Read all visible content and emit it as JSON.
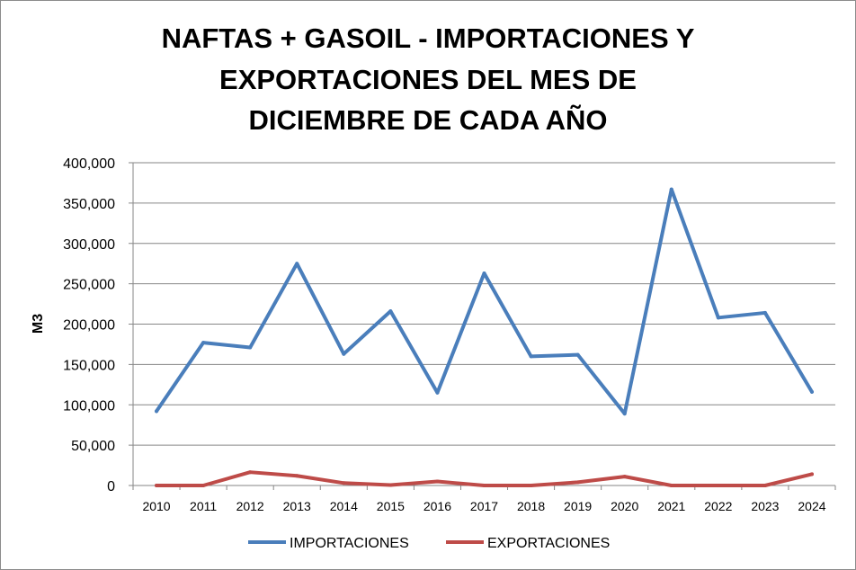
{
  "chart_data": {
    "type": "line",
    "title": "NAFTAS + GASOIL - IMPORTACIONES Y EXPORTACIONES DEL MES DE DICIEMBRE DE CADA AÑO",
    "title_lines": [
      "NAFTAS + GASOIL - IMPORTACIONES Y",
      "EXPORTACIONES DEL MES DE",
      "DICIEMBRE DE CADA AÑO"
    ],
    "xlabel": "",
    "ylabel": "M3",
    "ylim": [
      0,
      400000
    ],
    "y_ticks": [
      0,
      50000,
      100000,
      150000,
      200000,
      250000,
      300000,
      350000,
      400000
    ],
    "y_tick_labels": [
      "0",
      "50,000",
      "100,000",
      "150,000",
      "200,000",
      "250,000",
      "300,000",
      "350,000",
      "400,000"
    ],
    "categories": [
      "2010",
      "2011",
      "2012",
      "2013",
      "2014",
      "2015",
      "2016",
      "2017",
      "2018",
      "2019",
      "2020",
      "2021",
      "2022",
      "2023",
      "2024"
    ],
    "grid": true,
    "legend_position": "bottom",
    "series": [
      {
        "name": "IMPORTACIONES",
        "color": "#4a7ebb",
        "values": [
          92000,
          177000,
          171000,
          275000,
          163000,
          216000,
          115000,
          263000,
          160000,
          162000,
          89000,
          367000,
          208000,
          214000,
          116000
        ]
      },
      {
        "name": "EXPORTACIONES",
        "color": "#be4b48",
        "values": [
          0,
          0,
          16500,
          12000,
          3000,
          500,
          5000,
          0,
          0,
          4000,
          11000,
          0,
          0,
          0,
          14000
        ]
      }
    ]
  },
  "colors": {
    "gridline": "#868686",
    "axis": "#868686",
    "border": "#8c8c8c"
  }
}
